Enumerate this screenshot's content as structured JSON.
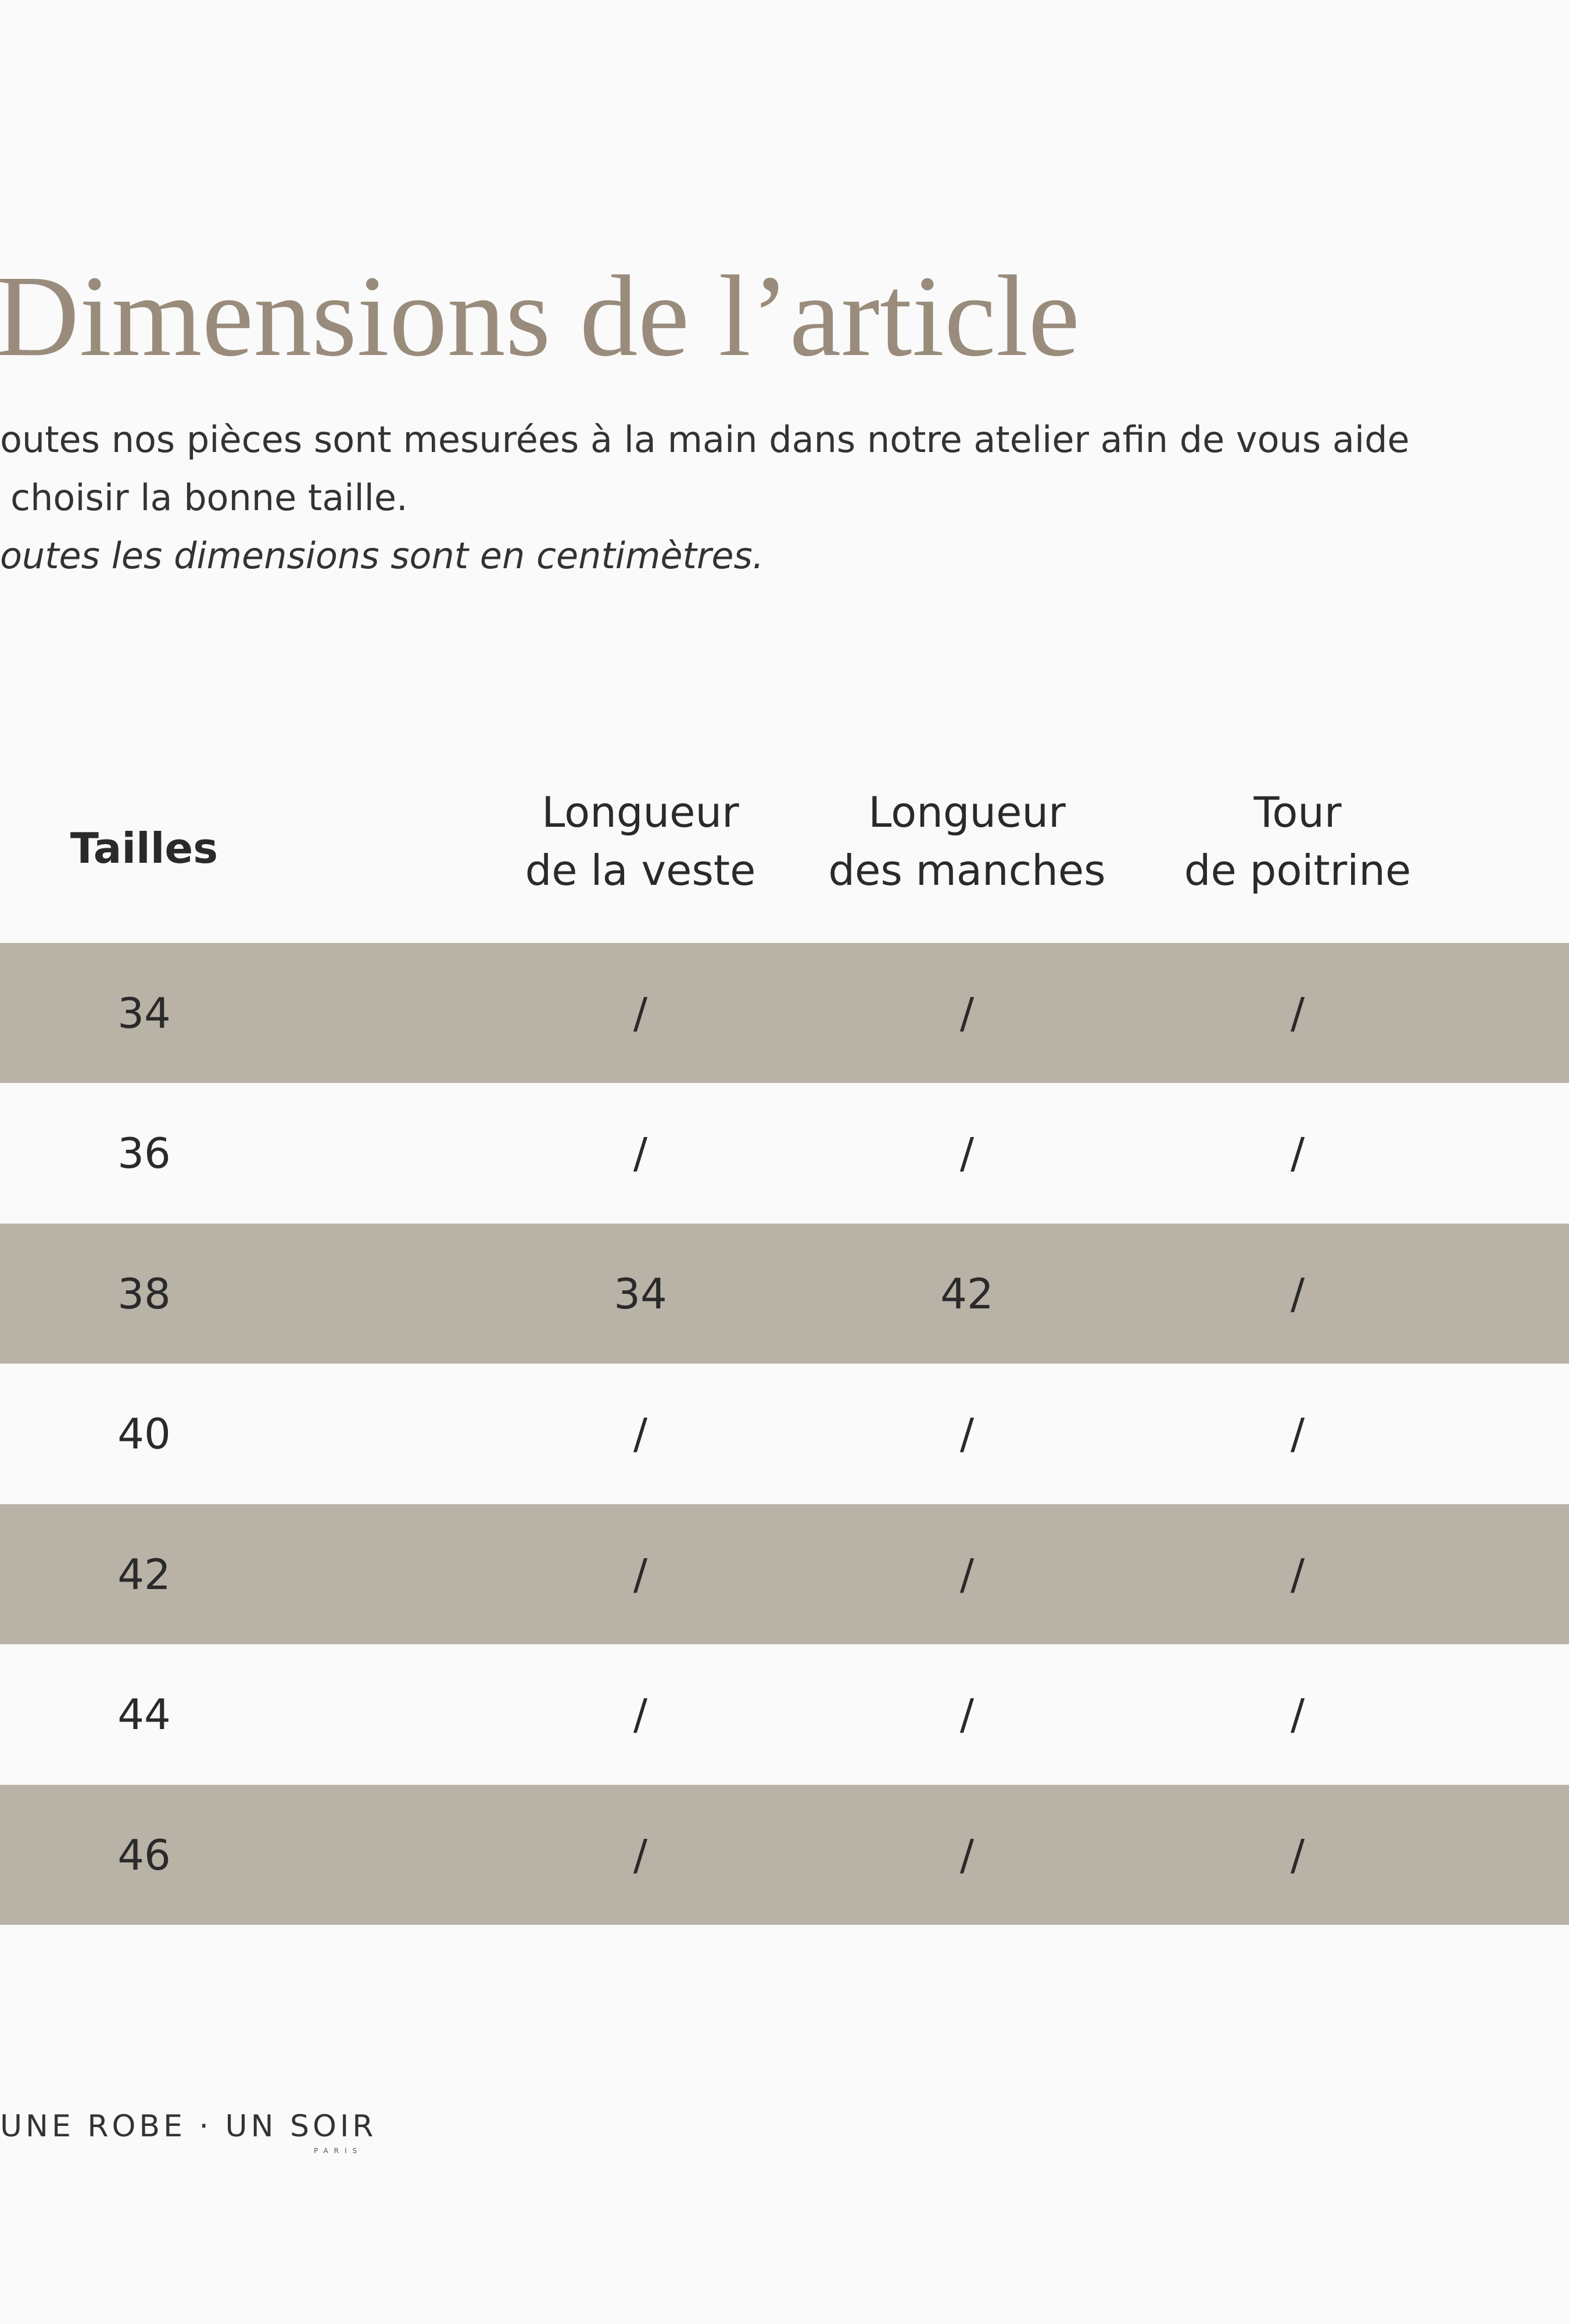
{
  "header": {
    "title": "Dimensions de l’article",
    "intro": [
      "outes nos pièces sont mesurées à la main dans notre atelier afin de vous aide",
      "choisir la bonne taille."
    ],
    "note": "outes les dimensions sont en centimètres."
  },
  "table": {
    "columns": [
      [
        "Tailles"
      ],
      [
        "Longueur",
        "de la veste"
      ],
      [
        "Longueur",
        "des manches"
      ],
      [
        "Tour",
        "de poitrine"
      ]
    ],
    "rows": [
      [
        34,
        "/",
        "/",
        "/"
      ],
      [
        36,
        "/",
        "/",
        "/"
      ],
      [
        38,
        34,
        42,
        "/"
      ],
      [
        40,
        "/",
        "/",
        "/"
      ],
      [
        42,
        "/",
        "/",
        "/"
      ],
      [
        44,
        "/",
        "/",
        "/"
      ],
      [
        46,
        "/",
        "/",
        "/"
      ]
    ]
  },
  "footer": {
    "brand": "UNE ROBE · UN SOIR",
    "city": "PARIS"
  }
}
